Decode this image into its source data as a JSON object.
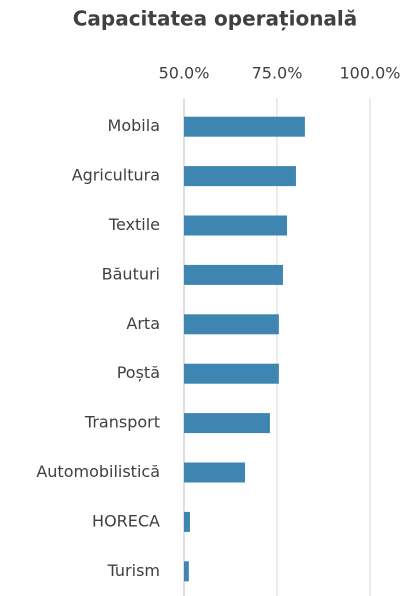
{
  "chart_data": {
    "type": "bar",
    "orientation": "horizontal",
    "title": "Capacitatea operațională",
    "categories": [
      "Mobila",
      "Agricultura",
      "Textile",
      "Băuturi",
      "Arta",
      "Poștă",
      "Transport",
      "Automobilistică",
      "HORECA",
      "Turism"
    ],
    "values": [
      82.5,
      80.1,
      77.7,
      76.6,
      75.5,
      75.5,
      73.1,
      66.4,
      51.6,
      51.3
    ],
    "color": "#3e85b1",
    "xlim": [
      50,
      100
    ],
    "xticks": [
      {
        "value": 50,
        "label": "50.0%"
      },
      {
        "value": 75,
        "label": "75.0%"
      },
      {
        "value": 100,
        "label": "100.0%"
      }
    ],
    "grid": true
  }
}
